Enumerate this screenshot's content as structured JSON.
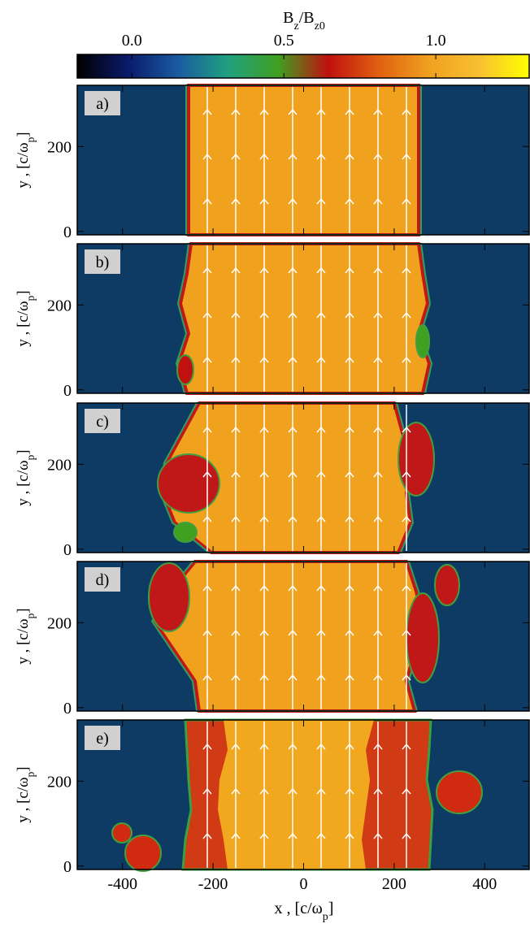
{
  "chart_data": {
    "type": "heatmap",
    "colorbar": {
      "label": [
        "B",
        "z",
        "/B",
        "z0"
      ],
      "lim": [
        -0.18,
        1.31
      ],
      "ticks": [
        {
          "value": 0,
          "label": "0.0"
        },
        {
          "value": 0.5,
          "label": "0.5"
        },
        {
          "value": 1,
          "label": "1.0"
        }
      ],
      "colors": [
        "#000000",
        "#0a1a6a",
        "#1a5aa0",
        "#20a080",
        "#40a020",
        "#c01010",
        "#e06010",
        "#f0a020",
        "#f8c030",
        "#ffff00"
      ]
    },
    "panels": [
      "a)",
      "b)",
      "c)",
      "d)",
      "e)"
    ],
    "xlabel": [
      "x , [c/ω",
      "p",
      "]"
    ],
    "ylabel": [
      "y , [c/ω",
      "p",
      "]"
    ],
    "xlim": [
      -500,
      500
    ],
    "xticks": [
      -400,
      -200,
      0,
      200,
      400
    ],
    "ylim": [
      -8,
      344
    ],
    "yticks": [
      0,
      200
    ]
  }
}
